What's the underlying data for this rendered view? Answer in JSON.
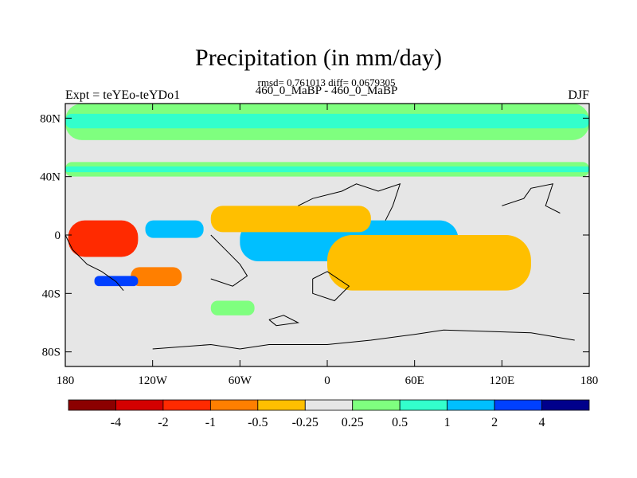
{
  "chart_data": {
    "type": "heatmap",
    "title": "Precipitation (in mm/day)",
    "subtitle": "rmsd= 0.761013 diff= 0.0679305",
    "subtitle2": "460_0_MaBP - 460_0_MaBP",
    "left_label": "Expt = teYEo-teYDo1",
    "right_label": "DJF",
    "x_ticks": [
      "180",
      "120W",
      "60W",
      "0",
      "60E",
      "120E",
      "180"
    ],
    "x_tick_values": [
      -180,
      -120,
      -60,
      0,
      60,
      120,
      180
    ],
    "y_ticks": [
      "80N",
      "40N",
      "0",
      "40S",
      "80S"
    ],
    "y_tick_values": [
      80,
      40,
      0,
      -40,
      -80
    ],
    "xlim": [
      -180,
      180
    ],
    "ylim": [
      -90,
      90
    ],
    "colorbar": {
      "labels": [
        "-4",
        "-2",
        "-1",
        "-0.5",
        "-0.25",
        "0.25",
        "0.5",
        "1",
        "2",
        "4"
      ],
      "levels": [
        -4,
        -2,
        -1,
        -0.5,
        -0.25,
        0.25,
        0.5,
        1,
        2,
        4
      ],
      "colors": [
        "#8b0000",
        "#d40000",
        "#ff2a00",
        "#ff7f00",
        "#ffbf00",
        "#e6e6e6",
        "#7fff7f",
        "#33ffcc",
        "#00bfff",
        "#0040ff",
        "#00008b"
      ]
    },
    "background_color": "#e6e6e6",
    "features": [
      {
        "name": "arctic-wet-band",
        "category": 6,
        "lon": [
          -180,
          180
        ],
        "lat": [
          65,
          90
        ]
      },
      {
        "name": "arctic-wetter-band",
        "category": 7,
        "lon": [
          -180,
          180
        ],
        "lat": [
          73,
          83
        ]
      },
      {
        "name": "northern-midlat-wet-band",
        "category": 6,
        "lon": [
          -180,
          180
        ],
        "lat": [
          40,
          50
        ]
      },
      {
        "name": "northern-midlat-wetter-band",
        "category": 7,
        "lon": [
          -180,
          180
        ],
        "lat": [
          43,
          47
        ]
      },
      {
        "name": "east-pacific-dry-core",
        "category": 1,
        "lon": [
          -170,
          -140
        ],
        "lat": [
          -10,
          0
        ]
      },
      {
        "name": "east-pacific-dry",
        "category": 2,
        "lon": [
          -178,
          -130
        ],
        "lat": [
          -15,
          10
        ]
      },
      {
        "name": "central-pacific-wet",
        "category": 8,
        "lon": [
          -125,
          -85
        ],
        "lat": [
          -2,
          10
        ]
      },
      {
        "name": "atlantic-equatorial-wet-core",
        "category": 10,
        "lon": [
          -5,
          40
        ],
        "lat": [
          -8,
          -2
        ]
      },
      {
        "name": "atlantic-equatorial-wet",
        "category": 9,
        "lon": [
          -55,
          80
        ],
        "lat": [
          -14,
          4
        ]
      },
      {
        "name": "africa-indian-wet-band",
        "category": 8,
        "lon": [
          -60,
          90
        ],
        "lat": [
          -18,
          10
        ]
      },
      {
        "name": "indian-ocean-dry-core",
        "category": 1,
        "lon": [
          60,
          105
        ],
        "lat": [
          -23,
          -12
        ]
      },
      {
        "name": "indian-ocean-dry",
        "category": 2,
        "lon": [
          25,
          125
        ],
        "lat": [
          -30,
          -5
        ]
      },
      {
        "name": "indian-ocean-dry-fringe",
        "category": 4,
        "lon": [
          0,
          140
        ],
        "lat": [
          -38,
          0
        ]
      },
      {
        "name": "north-tropical-dry",
        "category": 2,
        "lon": [
          -60,
          0
        ],
        "lat": [
          5,
          15
        ]
      },
      {
        "name": "north-tropical-dry-fringe",
        "category": 4,
        "lon": [
          -80,
          30
        ],
        "lat": [
          2,
          20
        ]
      },
      {
        "name": "south-pacific-dry",
        "category": 3,
        "lon": [
          -135,
          -100
        ],
        "lat": [
          -35,
          -22
        ]
      },
      {
        "name": "south-pacific-wet",
        "category": 9,
        "lon": [
          -160,
          -130
        ],
        "lat": [
          -35,
          -28
        ]
      },
      {
        "name": "southern-wet-patch",
        "category": 6,
        "lon": [
          -80,
          -50
        ],
        "lat": [
          -55,
          -45
        ]
      },
      {
        "name": "far-south-dry-patch",
        "category": 5,
        "lon": [
          -160,
          -140
        ],
        "lat": [
          -65,
          -60
        ]
      }
    ],
    "continent_outlines": [
      {
        "name": "north-outline",
        "points": [
          [
            -20,
            20
          ],
          [
            -10,
            25
          ],
          [
            10,
            30
          ],
          [
            20,
            35
          ],
          [
            35,
            30
          ],
          [
            50,
            35
          ],
          [
            45,
            20
          ],
          [
            40,
            10
          ]
        ]
      },
      {
        "name": "east-outline",
        "points": [
          [
            120,
            20
          ],
          [
            135,
            25
          ],
          [
            140,
            32
          ],
          [
            155,
            35
          ],
          [
            150,
            20
          ],
          [
            160,
            15
          ]
        ]
      },
      {
        "name": "mid-outline",
        "points": [
          [
            -80,
            0
          ],
          [
            -70,
            -10
          ],
          [
            -60,
            -20
          ],
          [
            -55,
            -28
          ],
          [
            -65,
            -35
          ],
          [
            -80,
            -30
          ]
        ]
      },
      {
        "name": "south-outline",
        "points": [
          [
            -180,
            0
          ],
          [
            -175,
            -10
          ],
          [
            -165,
            -20
          ],
          [
            -155,
            -25
          ],
          [
            -145,
            -32
          ],
          [
            -140,
            -38
          ]
        ]
      },
      {
        "name": "south-pole-outline",
        "points": [
          [
            -120,
            -78
          ],
          [
            -80,
            -75
          ],
          [
            -60,
            -78
          ],
          [
            -40,
            -75
          ],
          [
            0,
            -75
          ],
          [
            30,
            -72
          ],
          [
            60,
            -68
          ],
          [
            80,
            -65
          ],
          [
            110,
            -66
          ],
          [
            140,
            -67
          ],
          [
            170,
            -72
          ]
        ]
      },
      {
        "name": "small-outline-1",
        "points": [
          [
            -40,
            -58
          ],
          [
            -30,
            -55
          ],
          [
            -20,
            -60
          ],
          [
            -35,
            -62
          ],
          [
            -40,
            -58
          ]
        ]
      },
      {
        "name": "small-outline-2",
        "points": [
          [
            -10,
            -30
          ],
          [
            0,
            -25
          ],
          [
            15,
            -35
          ],
          [
            5,
            -45
          ],
          [
            -10,
            -40
          ],
          [
            -10,
            -30
          ]
        ]
      }
    ]
  }
}
